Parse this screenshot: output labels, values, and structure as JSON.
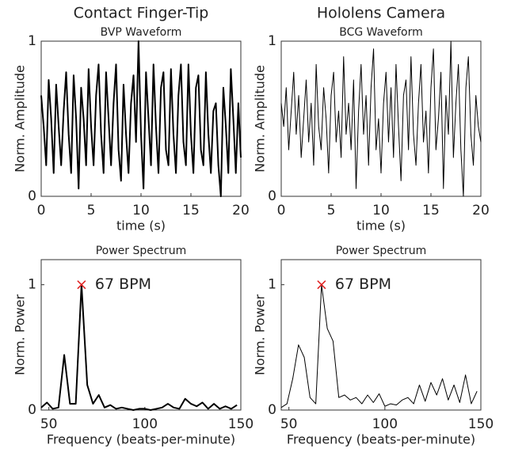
{
  "chart_data": [
    {
      "type": "line",
      "column_title": "Contact Finger-Tip",
      "title": "BVP Waveform",
      "xlabel": "time (s)",
      "ylabel": "Norm. Amplitude",
      "xlim": [
        0,
        20
      ],
      "xticks": [
        0,
        5,
        10,
        15,
        20
      ],
      "ylim": [
        0,
        1
      ],
      "yticks": [
        0,
        1
      ],
      "series": [
        {
          "color": "#000000",
          "x": [
            0,
            0.25,
            0.5,
            0.75,
            1,
            1.25,
            1.5,
            1.75,
            2,
            2.25,
            2.5,
            2.75,
            3,
            3.25,
            3.5,
            3.75,
            4,
            4.25,
            4.5,
            4.75,
            5,
            5.25,
            5.5,
            5.75,
            6,
            6.25,
            6.5,
            6.75,
            7,
            7.25,
            7.5,
            7.75,
            8,
            8.25,
            8.5,
            8.75,
            9,
            9.25,
            9.5,
            9.75,
            10,
            10.25,
            10.5,
            10.75,
            11,
            11.25,
            11.5,
            11.75,
            12,
            12.25,
            12.5,
            12.75,
            13,
            13.25,
            13.5,
            13.75,
            14,
            14.25,
            14.5,
            14.75,
            15,
            15.25,
            15.5,
            15.75,
            16,
            16.25,
            16.5,
            16.75,
            17,
            17.25,
            17.5,
            17.75,
            18,
            18.25,
            18.5,
            18.75,
            19,
            19.25,
            19.5,
            19.75,
            20
          ],
          "values": [
            0.65,
            0.45,
            0.2,
            0.75,
            0.5,
            0.15,
            0.72,
            0.45,
            0.2,
            0.55,
            0.8,
            0.4,
            0.15,
            0.78,
            0.5,
            0.05,
            0.7,
            0.5,
            0.2,
            0.82,
            0.45,
            0.2,
            0.65,
            0.85,
            0.4,
            0.15,
            0.8,
            0.5,
            0.2,
            0.6,
            0.85,
            0.3,
            0.1,
            0.72,
            0.4,
            0.15,
            0.6,
            0.78,
            0.35,
            1.0,
            0.4,
            0.05,
            0.8,
            0.5,
            0.2,
            0.85,
            0.45,
            0.15,
            0.7,
            0.8,
            0.3,
            0.2,
            0.82,
            0.4,
            0.15,
            0.65,
            0.85,
            0.35,
            0.2,
            0.85,
            0.4,
            0.15,
            0.7,
            0.78,
            0.3,
            0.2,
            0.8,
            0.4,
            0.15,
            0.55,
            0.6,
            0.2,
            0.0,
            0.7,
            0.45,
            0.15,
            0.82,
            0.5,
            0.15,
            0.6,
            0.25
          ]
        }
      ]
    },
    {
      "type": "line",
      "column_title": "Hololens Camera",
      "title": "BCG Waveform",
      "xlabel": "time (s)",
      "ylabel": "Norm. Amplitude",
      "xlim": [
        0,
        20
      ],
      "xticks": [
        0,
        5,
        10,
        15,
        20
      ],
      "ylim": [
        0,
        1
      ],
      "yticks": [
        0,
        1
      ],
      "series": [
        {
          "color": "#000000",
          "x": [
            0,
            0.25,
            0.5,
            0.75,
            1,
            1.25,
            1.5,
            1.75,
            2,
            2.25,
            2.5,
            2.75,
            3,
            3.25,
            3.5,
            3.75,
            4,
            4.25,
            4.5,
            4.75,
            5,
            5.25,
            5.5,
            5.75,
            6,
            6.25,
            6.5,
            6.75,
            7,
            7.25,
            7.5,
            7.75,
            8,
            8.25,
            8.5,
            8.75,
            9,
            9.25,
            9.5,
            9.75,
            10,
            10.25,
            10.5,
            10.75,
            11,
            11.25,
            11.5,
            11.75,
            12,
            12.25,
            12.5,
            12.75,
            13,
            13.25,
            13.5,
            13.75,
            14,
            14.25,
            14.5,
            14.75,
            15,
            15.25,
            15.5,
            15.75,
            16,
            16.25,
            16.5,
            16.75,
            17,
            17.25,
            17.5,
            17.75,
            18,
            18.25,
            18.5,
            18.75,
            19,
            19.25,
            19.5,
            19.75,
            20
          ],
          "values": [
            0.6,
            0.45,
            0.7,
            0.3,
            0.55,
            0.8,
            0.4,
            0.65,
            0.25,
            0.5,
            0.75,
            0.35,
            0.6,
            0.2,
            0.85,
            0.45,
            0.3,
            0.7,
            0.5,
            0.15,
            0.65,
            0.8,
            0.35,
            0.55,
            0.25,
            0.9,
            0.4,
            0.6,
            0.3,
            0.75,
            0.05,
            0.55,
            0.85,
            0.4,
            0.65,
            0.2,
            0.7,
            0.95,
            0.3,
            0.5,
            0.15,
            0.6,
            0.8,
            0.35,
            0.7,
            0.25,
            0.85,
            0.45,
            0.1,
            0.65,
            0.75,
            0.3,
            0.9,
            0.4,
            0.2,
            0.6,
            0.85,
            0.35,
            0.55,
            0.15,
            0.7,
            0.95,
            0.3,
            0.5,
            0.8,
            0.05,
            0.65,
            0.4,
            1.0,
            0.25,
            0.6,
            0.85,
            0.3,
            0.0,
            0.7,
            0.9,
            0.4,
            0.2,
            0.65,
            0.45,
            0.35
          ]
        }
      ]
    },
    {
      "type": "line",
      "title": "Power Spectrum",
      "xlabel": "Frequency (beats-per-minute)",
      "ylabel": "Norm. Power",
      "xlim": [
        46,
        150
      ],
      "xticks": [
        50,
        100,
        150
      ],
      "ylim": [
        0,
        1.2
      ],
      "yticks": [
        0,
        1
      ],
      "peak": {
        "x": 67,
        "y": 1,
        "label": "67 BPM",
        "color": "#e02020"
      },
      "series": [
        {
          "color": "#000000",
          "x": [
            46,
            49,
            52,
            55,
            58,
            61,
            64,
            67,
            70,
            73,
            76,
            79,
            82,
            85,
            88,
            91,
            94,
            97,
            100,
            103,
            106,
            109,
            112,
            115,
            118,
            121,
            124,
            127,
            130,
            133,
            136,
            139,
            142,
            145,
            148
          ],
          "values": [
            0.02,
            0.06,
            0.01,
            0.02,
            0.44,
            0.05,
            0.05,
            1,
            0.2,
            0.05,
            0.12,
            0.02,
            0.04,
            0.01,
            0.02,
            0.01,
            0.0,
            0.01,
            0.01,
            0.0,
            0.01,
            0.02,
            0.05,
            0.02,
            0.01,
            0.09,
            0.05,
            0.03,
            0.06,
            0.01,
            0.05,
            0.01,
            0.03,
            0.01,
            0.04
          ]
        }
      ]
    },
    {
      "type": "line",
      "title": "Power Spectrum",
      "xlabel": "Frequency (beats-per-minute)",
      "ylabel": "Norm. Power",
      "xlim": [
        46,
        150
      ],
      "xticks": [
        50,
        100,
        150
      ],
      "ylim": [
        0,
        1.2
      ],
      "yticks": [
        0,
        1
      ],
      "peak": {
        "x": 67,
        "y": 1,
        "label": "67 BPM",
        "color": "#e02020"
      },
      "series": [
        {
          "color": "#000000",
          "x": [
            46,
            49,
            52,
            55,
            58,
            61,
            64,
            67,
            70,
            73,
            76,
            79,
            82,
            85,
            88,
            91,
            94,
            97,
            100,
            103,
            106,
            109,
            112,
            115,
            118,
            121,
            124,
            127,
            130,
            133,
            136,
            139,
            142,
            145,
            148
          ],
          "values": [
            0.02,
            0.05,
            0.25,
            0.52,
            0.42,
            0.1,
            0.05,
            1,
            0.65,
            0.55,
            0.1,
            0.12,
            0.08,
            0.1,
            0.05,
            0.12,
            0.06,
            0.13,
            0.03,
            0.05,
            0.04,
            0.08,
            0.1,
            0.05,
            0.2,
            0.07,
            0.22,
            0.12,
            0.25,
            0.08,
            0.2,
            0.06,
            0.28,
            0.05,
            0.15
          ]
        }
      ]
    }
  ]
}
